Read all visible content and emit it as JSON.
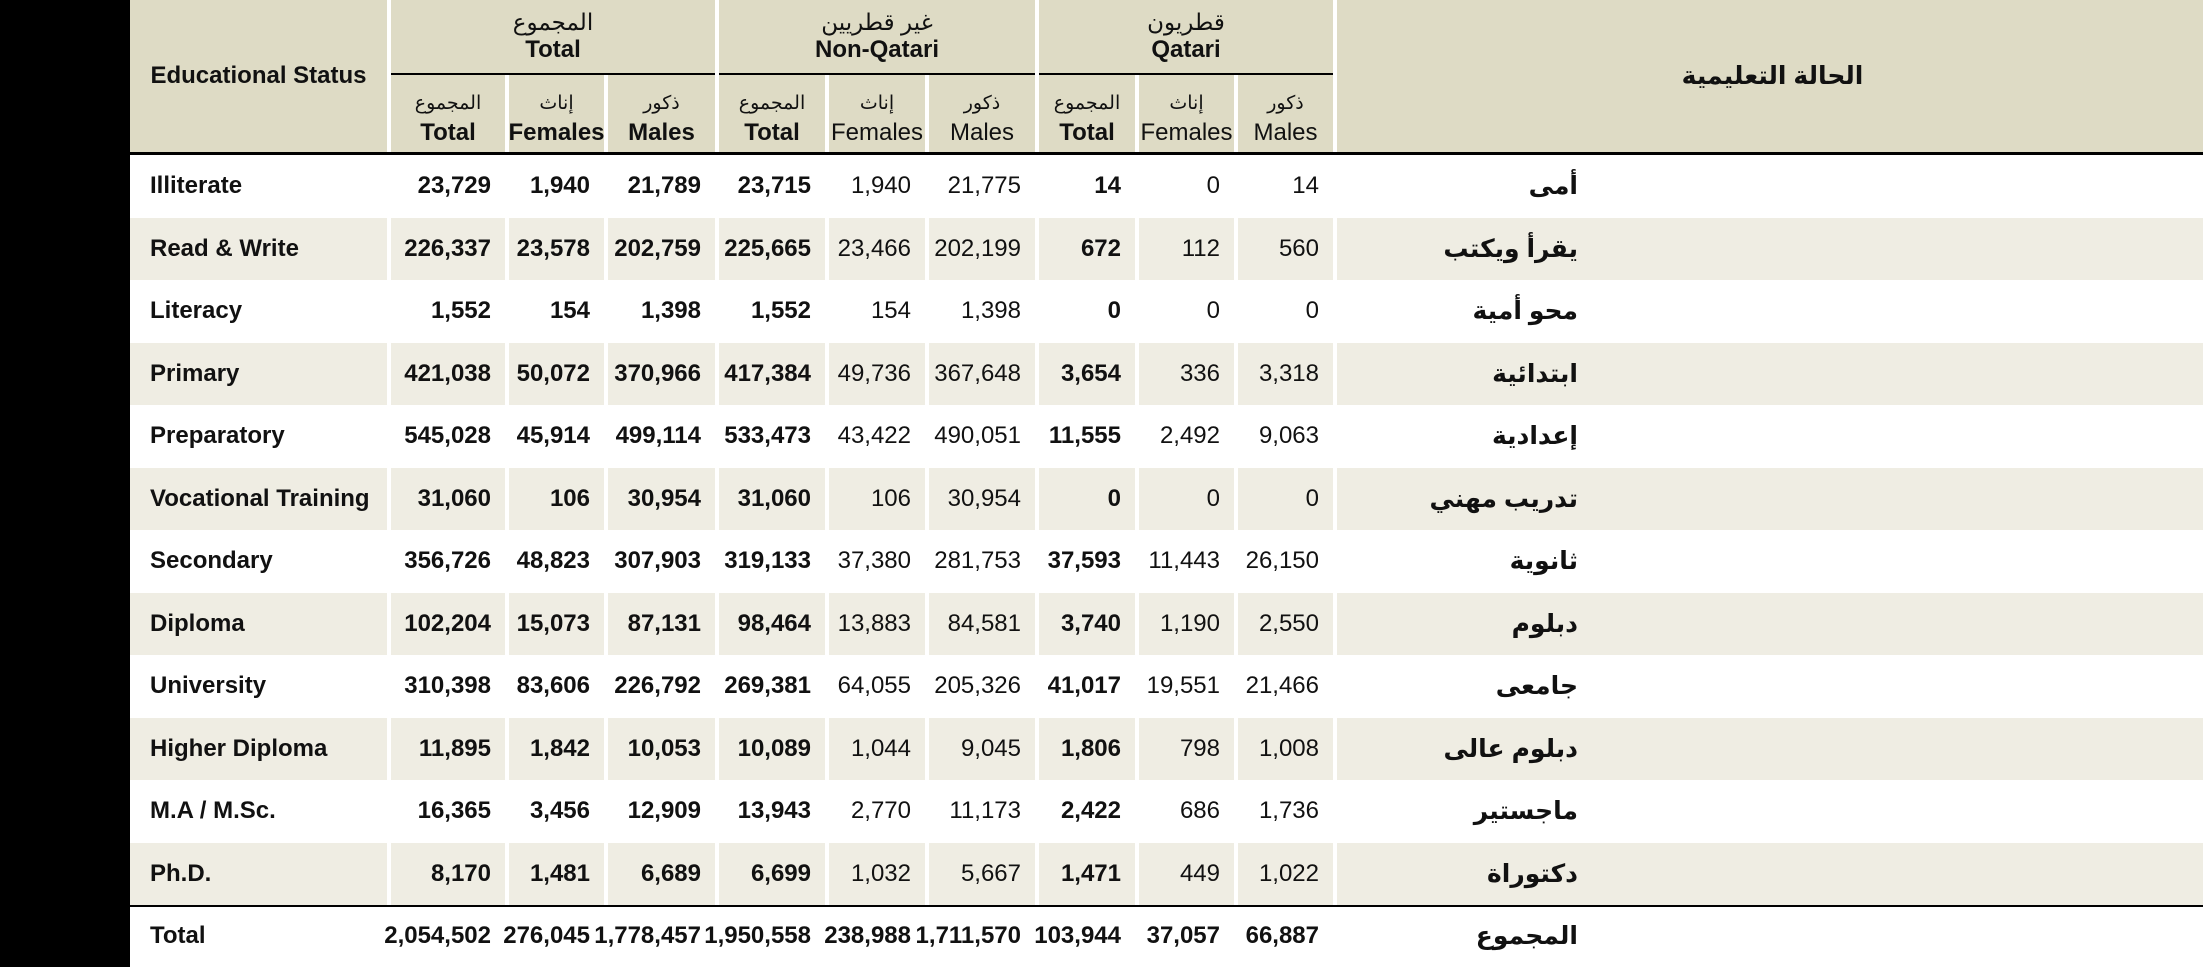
{
  "header": {
    "left_title": "Educational Status",
    "right_title": "الحالة التعليمية",
    "groups": [
      {
        "ar": "المجموع",
        "en": "Total"
      },
      {
        "ar": "غير قطريين",
        "en": "Non-Qatari"
      },
      {
        "ar": "قطريون",
        "en": "Qatari"
      }
    ],
    "sub": {
      "total_ar": "المجموع",
      "total_en": "Total",
      "females_ar": "إناث",
      "females_en": "Females",
      "males_ar": "ذكور",
      "males_en": "Males"
    }
  },
  "rows": [
    {
      "en": "Illiterate",
      "ar": "أمى",
      "v": [
        "23,729",
        "1,940",
        "21,789",
        "23,715",
        "1,940",
        "21,775",
        "14",
        "0",
        "14"
      ]
    },
    {
      "en": "Read & Write",
      "ar": "يقرأ ويكتب",
      "v": [
        "226,337",
        "23,578",
        "202,759",
        "225,665",
        "23,466",
        "202,199",
        "672",
        "112",
        "560"
      ]
    },
    {
      "en": "Literacy",
      "ar": "محو أمية",
      "v": [
        "1,552",
        "154",
        "1,398",
        "1,552",
        "154",
        "1,398",
        "0",
        "0",
        "0"
      ]
    },
    {
      "en": "Primary",
      "ar": "ابتدائية",
      "v": [
        "421,038",
        "50,072",
        "370,966",
        "417,384",
        "49,736",
        "367,648",
        "3,654",
        "336",
        "3,318"
      ]
    },
    {
      "en": "Preparatory",
      "ar": "إعدادية",
      "v": [
        "545,028",
        "45,914",
        "499,114",
        "533,473",
        "43,422",
        "490,051",
        "11,555",
        "2,492",
        "9,063"
      ]
    },
    {
      "en": "Vocational Training",
      "ar": "تدريب مهني",
      "v": [
        "31,060",
        "106",
        "30,954",
        "31,060",
        "106",
        "30,954",
        "0",
        "0",
        "0"
      ]
    },
    {
      "en": "Secondary",
      "ar": "ثانوية",
      "v": [
        "356,726",
        "48,823",
        "307,903",
        "319,133",
        "37,380",
        "281,753",
        "37,593",
        "11,443",
        "26,150"
      ]
    },
    {
      "en": "Diploma",
      "ar": "دبلوم",
      "v": [
        "102,204",
        "15,073",
        "87,131",
        "98,464",
        "13,883",
        "84,581",
        "3,740",
        "1,190",
        "2,550"
      ]
    },
    {
      "en": "University",
      "ar": "جامعى",
      "v": [
        "310,398",
        "83,606",
        "226,792",
        "269,381",
        "64,055",
        "205,326",
        "41,017",
        "19,551",
        "21,466"
      ]
    },
    {
      "en": "Higher Diploma",
      "ar": "دبلوم عالى",
      "v": [
        "11,895",
        "1,842",
        "10,053",
        "10,089",
        "1,044",
        "9,045",
        "1,806",
        "798",
        "1,008"
      ]
    },
    {
      "en": "M.A / M.Sc.",
      "ar": "ماجستير",
      "v": [
        "16,365",
        "3,456",
        "12,909",
        "13,943",
        "2,770",
        "11,173",
        "2,422",
        "686",
        "1,736"
      ]
    },
    {
      "en": "Ph.D.",
      "ar": "دكتوراة",
      "v": [
        "8,170",
        "1,481",
        "6,689",
        "6,699",
        "1,032",
        "5,667",
        "1,471",
        "449",
        "1,022"
      ]
    }
  ],
  "total_row": {
    "en": "Total",
    "ar": "المجموع",
    "v": [
      "2,054,502",
      "276,045",
      "1,778,457",
      "1,950,558",
      "238,988",
      "1,711,570",
      "103,944",
      "37,057",
      "66,887"
    ]
  }
}
